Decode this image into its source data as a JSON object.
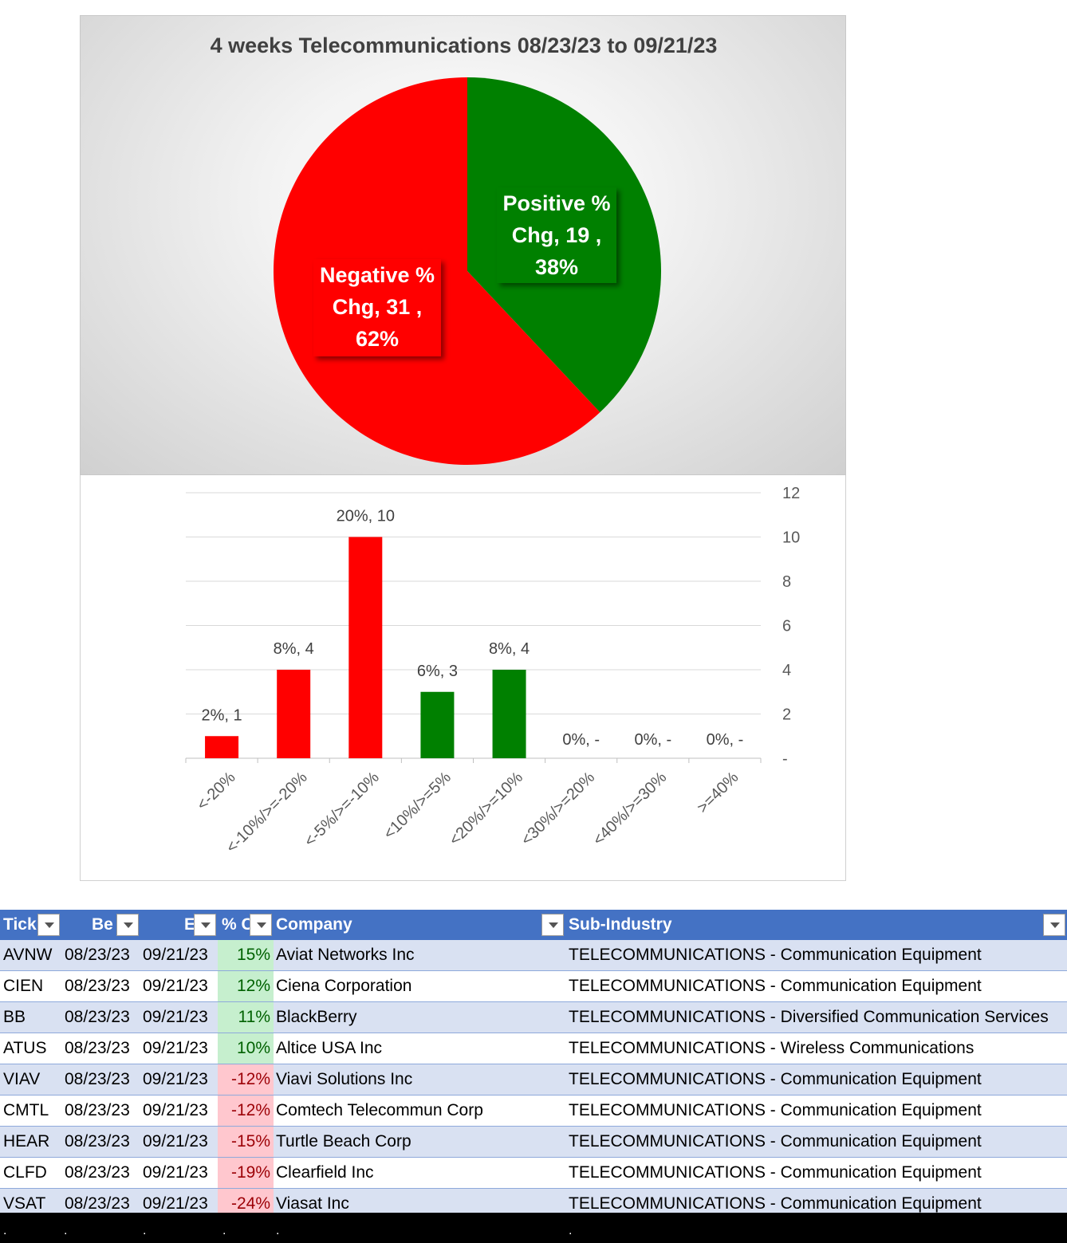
{
  "chart_data": [
    {
      "type": "pie",
      "title": "4 weeks Telecommunications 08/23/23 to 09/21/23",
      "slices": [
        {
          "name": "Positive % Chg",
          "value": 19,
          "percent": "38%",
          "color": "#008000",
          "label_lines": [
            "Positive %",
            "Chg,  19 ,",
            "38%"
          ]
        },
        {
          "name": "Negative % Chg",
          "value": 31,
          "percent": "62%",
          "color": "#ff0000",
          "label_lines": [
            "Negative %",
            "Chg,  31 ,",
            "62%"
          ]
        }
      ]
    },
    {
      "type": "bar",
      "categories": [
        "<-20%",
        "<-10%/>=-20%",
        "<-5%/>=-10%",
        "<10%/>=5%",
        "<20%/>=10%",
        "<30%/>=20%",
        "<40%/>=30%",
        ">=40%"
      ],
      "values": [
        1,
        4,
        10,
        3,
        4,
        0,
        0,
        0
      ],
      "colors": [
        "#ff0000",
        "#ff0000",
        "#ff0000",
        "#008000",
        "#008000",
        "#008000",
        "#008000",
        "#008000"
      ],
      "data_labels": [
        "2%,  1",
        "8%,  4",
        "20%,  10",
        "6%,  3",
        "8%,  4",
        "0%,  -",
        "0%,  -",
        "0%,  -"
      ],
      "ylim": [
        0,
        12
      ],
      "yticks": [
        "-",
        "2",
        "4",
        "6",
        "8",
        "10",
        "12"
      ],
      "y_axis_side": "right",
      "grid": true
    }
  ],
  "table": {
    "headers": [
      "Tick",
      "Be",
      "E",
      "% C",
      "Company",
      "Sub-Industry"
    ],
    "rows": [
      {
        "ticker": "AVNW",
        "begin": "08/23/23",
        "end": "09/21/23",
        "pct": "15%",
        "company": "Aviat Networks Inc",
        "sub_industry": "TELECOMMUNICATIONS - Communication Equipment",
        "sign": "pos"
      },
      {
        "ticker": "CIEN",
        "begin": "08/23/23",
        "end": "09/21/23",
        "pct": "12%",
        "company": "Ciena Corporation",
        "sub_industry": "TELECOMMUNICATIONS - Communication Equipment",
        "sign": "pos"
      },
      {
        "ticker": "BB",
        "begin": "08/23/23",
        "end": "09/21/23",
        "pct": "11%",
        "company": "BlackBerry",
        "sub_industry": "TELECOMMUNICATIONS - Diversified Communication Services",
        "sign": "pos"
      },
      {
        "ticker": "ATUS",
        "begin": "08/23/23",
        "end": "09/21/23",
        "pct": "10%",
        "company": "Altice USA Inc",
        "sub_industry": "TELECOMMUNICATIONS - Wireless Communications",
        "sign": "pos"
      },
      {
        "ticker": "VIAV",
        "begin": "08/23/23",
        "end": "09/21/23",
        "pct": "-12%",
        "company": "Viavi Solutions Inc",
        "sub_industry": "TELECOMMUNICATIONS - Communication Equipment",
        "sign": "neg"
      },
      {
        "ticker": "CMTL",
        "begin": "08/23/23",
        "end": "09/21/23",
        "pct": "-12%",
        "company": "Comtech Telecommun Corp",
        "sub_industry": "TELECOMMUNICATIONS - Communication Equipment",
        "sign": "neg"
      },
      {
        "ticker": "HEAR",
        "begin": "08/23/23",
        "end": "09/21/23",
        "pct": "-15%",
        "company": "Turtle Beach Corp",
        "sub_industry": "TELECOMMUNICATIONS - Communication Equipment",
        "sign": "neg"
      },
      {
        "ticker": "CLFD",
        "begin": "08/23/23",
        "end": "09/21/23",
        "pct": "-19%",
        "company": "Clearfield Inc",
        "sub_industry": "TELECOMMUNICATIONS - Communication Equipment",
        "sign": "neg"
      },
      {
        "ticker": "VSAT",
        "begin": "08/23/23",
        "end": "09/21/23",
        "pct": "-24%",
        "company": "Viasat Inc",
        "sub_industry": "TELECOMMUNICATIONS - Communication Equipment",
        "sign": "neg"
      }
    ]
  },
  "footer_dots": [
    ".",
    ".",
    ".",
    ".",
    ".",
    "."
  ]
}
